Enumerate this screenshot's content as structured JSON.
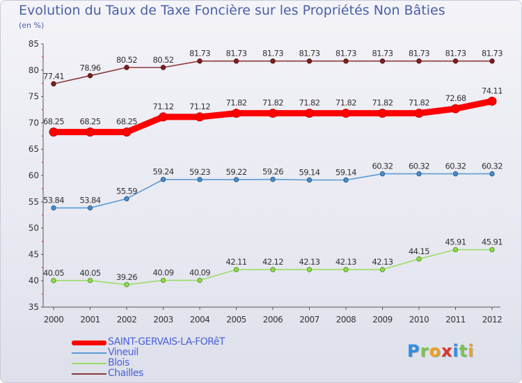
{
  "header": {
    "title": "Evolution du Taux de Taxe Foncière sur les Propriétés Non Bâties",
    "subtitle": "(en %)"
  },
  "brand": {
    "letters": [
      "P",
      "r",
      "o",
      "x",
      "i",
      "t",
      "i"
    ],
    "colors": [
      "#2f8ee0",
      "#7cc44a",
      "#f0a020",
      "#e0302a",
      "#2f8ee0",
      "#7cc44a",
      "#f0a020"
    ]
  },
  "chart_data": {
    "type": "line",
    "title": "Evolution du Taux de Taxe Foncière sur les Propriétés Non Bâties",
    "ylabel": "(en %)",
    "xlabel": "",
    "categories": [
      "2000",
      "2001",
      "2002",
      "2003",
      "2004",
      "2005",
      "2006",
      "2007",
      "2008",
      "2009",
      "2010",
      "2011",
      "2012"
    ],
    "ylim": [
      35,
      85
    ],
    "yticks": [
      35,
      40,
      45,
      50,
      55,
      60,
      65,
      70,
      75,
      80,
      85
    ],
    "grid": false,
    "legend_position": "bottom-left",
    "series": [
      {
        "name": "SAINT-GERVAIS-LA-FORêT",
        "color": "#ff0000",
        "values": [
          68.25,
          68.25,
          68.25,
          71.12,
          71.12,
          71.82,
          71.82,
          71.82,
          71.82,
          71.82,
          71.82,
          72.68,
          74.11
        ],
        "labels": [
          "68.25",
          "68.25",
          "68.25",
          "71.12",
          "71.12",
          "71.82",
          "71.82",
          "71.82",
          "71.82",
          "71.82",
          "71.82",
          "72.68",
          "74.11"
        ]
      },
      {
        "name": "Vineuil",
        "color": "#5b9bd5",
        "values": [
          53.84,
          53.84,
          55.59,
          59.24,
          59.23,
          59.22,
          59.26,
          59.14,
          59.14,
          60.32,
          60.32,
          60.32,
          60.32
        ],
        "labels": [
          "53.84",
          "53.84",
          "55.59",
          "59.24",
          "59.23",
          "59.22",
          "59.26",
          "59.14",
          "59.14",
          "60.32",
          "60.32",
          "60.32",
          "60.32"
        ]
      },
      {
        "name": "Blois",
        "color": "#99dd66",
        "values": [
          40.05,
          40.05,
          39.26,
          40.09,
          40.09,
          42.11,
          42.12,
          42.13,
          42.13,
          42.13,
          44.15,
          45.91,
          45.91
        ],
        "labels": [
          "40.05",
          "40.05",
          "39.26",
          "40.09",
          "40.09",
          "42.11",
          "42.12",
          "42.13",
          "42.13",
          "42.13",
          "44.15",
          "45.91",
          "45.91"
        ]
      },
      {
        "name": "Chailles",
        "color": "#8b3a3a",
        "values": [
          77.41,
          78.96,
          80.52,
          80.52,
          81.73,
          81.73,
          81.73,
          81.73,
          81.73,
          81.73,
          81.73,
          81.73,
          81.73
        ],
        "labels": [
          "77.41",
          "78.96",
          "80.52",
          "80.52",
          "81.73",
          "81.73",
          "81.73",
          "81.73",
          "81.73",
          "81.73",
          "81.73",
          "81.73",
          "81.73"
        ]
      }
    ]
  }
}
